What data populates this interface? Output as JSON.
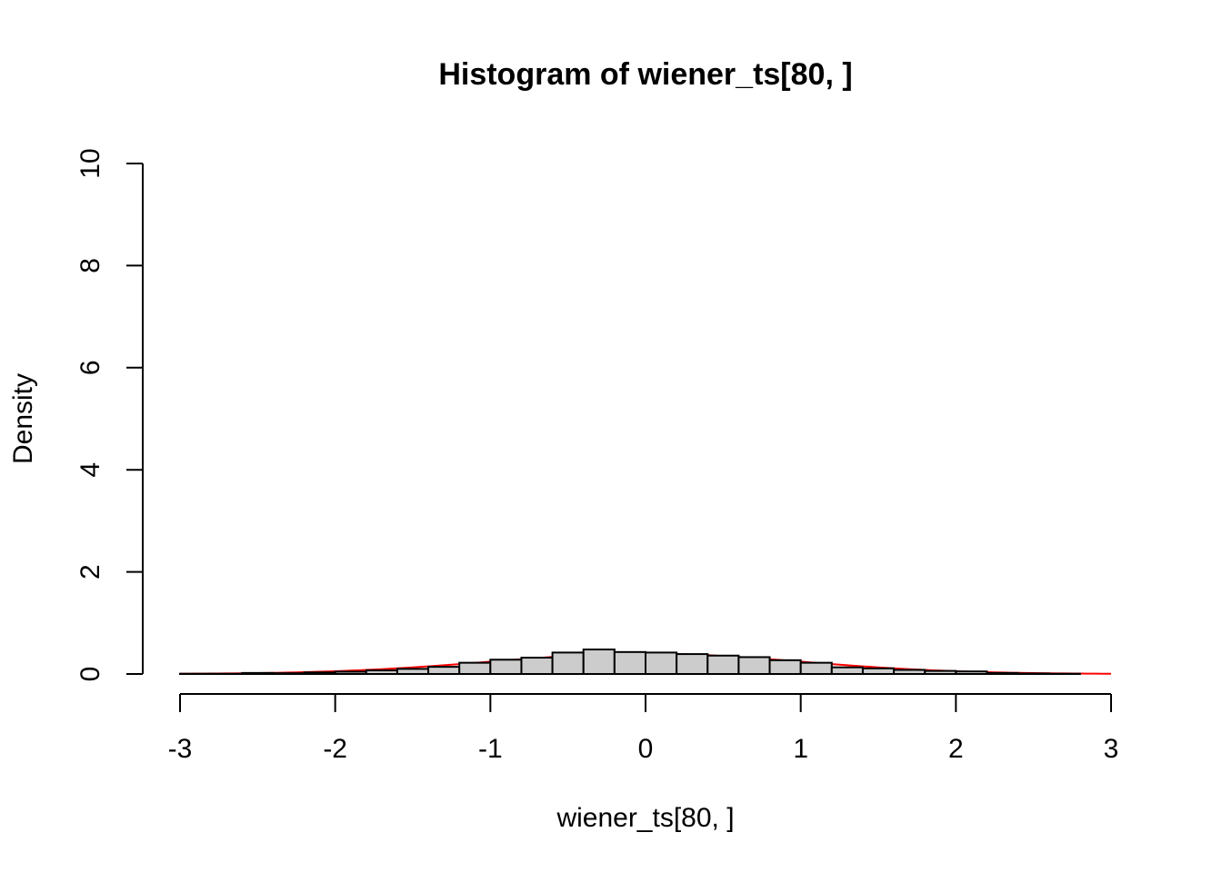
{
  "chart_data": {
    "type": "bar",
    "title": "Histogram of wiener_ts[80, ]",
    "xlabel": "wiener_ts[80, ]",
    "ylabel": "Density",
    "xlim": [
      -3,
      3
    ],
    "ylim": [
      0,
      10
    ],
    "x_ticks": [
      "-3",
      "-2",
      "-1",
      "0",
      "1",
      "2",
      "3"
    ],
    "y_ticks": [
      "0",
      "2",
      "4",
      "6",
      "8",
      "10"
    ],
    "bin_width": 0.2,
    "bins": [
      {
        "start": -3.0,
        "density": 0.005
      },
      {
        "start": -2.8,
        "density": 0.005
      },
      {
        "start": -2.6,
        "density": 0.02
      },
      {
        "start": -2.4,
        "density": 0.015
      },
      {
        "start": -2.2,
        "density": 0.03
      },
      {
        "start": -2.0,
        "density": 0.045
      },
      {
        "start": -1.8,
        "density": 0.07
      },
      {
        "start": -1.6,
        "density": 0.1
      },
      {
        "start": -1.4,
        "density": 0.14
      },
      {
        "start": -1.2,
        "density": 0.22
      },
      {
        "start": -1.0,
        "density": 0.28
      },
      {
        "start": -0.8,
        "density": 0.32
      },
      {
        "start": -0.6,
        "density": 0.42
      },
      {
        "start": -0.4,
        "density": 0.48
      },
      {
        "start": -0.2,
        "density": 0.43
      },
      {
        "start": 0.0,
        "density": 0.42
      },
      {
        "start": 0.2,
        "density": 0.39
      },
      {
        "start": 0.4,
        "density": 0.36
      },
      {
        "start": 0.6,
        "density": 0.33
      },
      {
        "start": 0.8,
        "density": 0.27
      },
      {
        "start": 1.0,
        "density": 0.22
      },
      {
        "start": 1.2,
        "density": 0.13
      },
      {
        "start": 1.4,
        "density": 0.11
      },
      {
        "start": 1.6,
        "density": 0.08
      },
      {
        "start": 1.8,
        "density": 0.06
      },
      {
        "start": 2.0,
        "density": 0.05
      },
      {
        "start": 2.2,
        "density": 0.02
      },
      {
        "start": 2.4,
        "density": 0.01
      },
      {
        "start": 2.6,
        "density": 0.005
      }
    ],
    "colors": {
      "bar_fill": "#cccccc",
      "bar_stroke": "#000000",
      "curve": "#ff0000"
    }
  }
}
